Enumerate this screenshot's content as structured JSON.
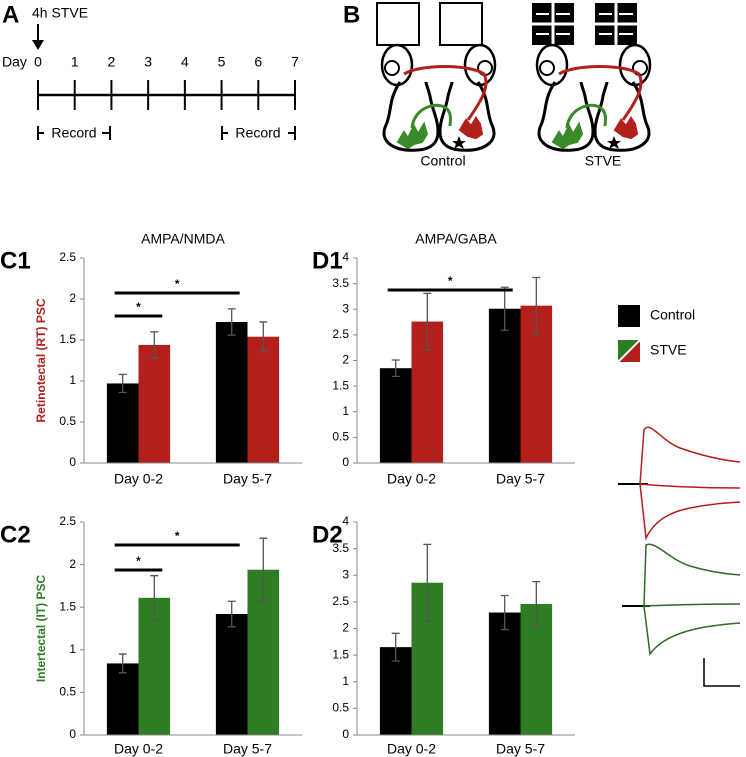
{
  "panel_labels": [
    "A",
    "B",
    "C1",
    "D1",
    "C2",
    "D2"
  ],
  "timeline": {
    "event": "4h STVE",
    "axis_label": "Day",
    "days": [
      0,
      1,
      2,
      3,
      4,
      5,
      6,
      7
    ],
    "record": [
      "Record",
      "Record"
    ]
  },
  "diagram": {
    "labels": [
      "Control",
      "STVE"
    ]
  },
  "row_labels": [
    {
      "text": "Retinotectal (RT) PSC",
      "color": "#b3201c"
    },
    {
      "text": "Intertectal (IT) PSC",
      "color": "#2e7d24"
    }
  ],
  "chart_data": [
    {
      "type": "bar",
      "title": "AMPA/NMDA",
      "categories": [
        "Day 0-2",
        "Day 5-7"
      ],
      "series": [
        {
          "name": "Control",
          "color": "#000000",
          "values": [
            0.97,
            1.72
          ],
          "errors": [
            0.11,
            0.16
          ]
        },
        {
          "name": "STVE",
          "color": "#b3201c",
          "values": [
            1.44,
            1.54
          ],
          "errors": [
            0.16,
            0.18
          ]
        }
      ],
      "ylim": [
        0,
        2.5
      ],
      "yticks": [
        0,
        0.5,
        1,
        1.5,
        2,
        2.5
      ],
      "annotations": [
        "*",
        "*"
      ]
    },
    {
      "type": "bar",
      "title": "AMPA/GABA",
      "categories": [
        "Day 0-2",
        "Day 5-7"
      ],
      "series": [
        {
          "name": "Control",
          "color": "#000000",
          "values": [
            1.85,
            3.01
          ],
          "errors": [
            0.16,
            0.42
          ]
        },
        {
          "name": "STVE",
          "color": "#b3201c",
          "values": [
            2.76,
            3.07
          ],
          "errors": [
            0.55,
            0.55
          ]
        }
      ],
      "ylim": [
        0,
        4
      ],
      "yticks": [
        0,
        0.5,
        1,
        1.5,
        2,
        2.5,
        3,
        3.5,
        4
      ],
      "annotations": [
        "*"
      ]
    },
    {
      "type": "bar",
      "categories": [
        "Day 0-2",
        "Day 5-7"
      ],
      "series": [
        {
          "name": "Control",
          "color": "#000000",
          "values": [
            0.84,
            1.42
          ],
          "errors": [
            0.11,
            0.15
          ]
        },
        {
          "name": "STVE",
          "color": "#2e7d24",
          "values": [
            1.61,
            1.94
          ],
          "errors": [
            0.26,
            0.37
          ]
        }
      ],
      "ylim": [
        0,
        2.5
      ],
      "yticks": [
        0,
        0.5,
        1,
        1.5,
        2,
        2.5
      ],
      "annotations": [
        "*",
        "*"
      ]
    },
    {
      "type": "bar",
      "categories": [
        "Day 0-2",
        "Day 5-7"
      ],
      "series": [
        {
          "name": "Control",
          "color": "#000000",
          "values": [
            1.65,
            2.3
          ],
          "errors": [
            0.26,
            0.32
          ]
        },
        {
          "name": "STVE",
          "color": "#2e7d24",
          "values": [
            2.86,
            2.46
          ],
          "errors": [
            0.72,
            0.42
          ]
        }
      ],
      "ylim": [
        0,
        4
      ],
      "yticks": [
        0,
        0.5,
        1,
        1.5,
        2,
        2.5,
        3,
        3.5,
        4
      ],
      "annotations": []
    }
  ]
}
